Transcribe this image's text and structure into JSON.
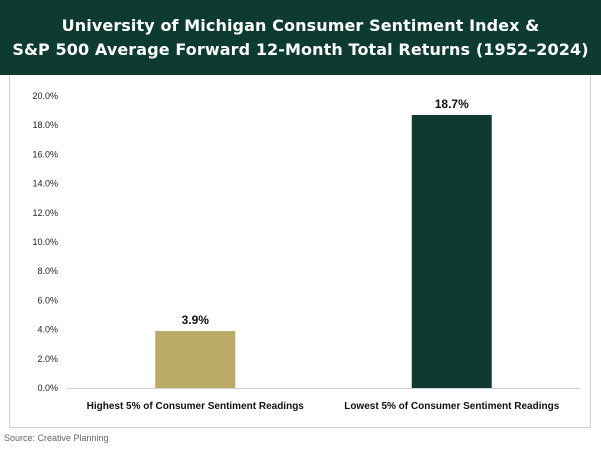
{
  "header": {
    "title_line1": "University of Michigan Consumer Sentiment Index &",
    "title_line2": "S&P 500 Average Forward 12-Month Total Returns (1952–2024)"
  },
  "source": "Source: Creative Planning",
  "colors": {
    "banner": "#0d3b31",
    "bar_high": "#b9ab65",
    "bar_low": "#0d3b31"
  },
  "chart_data": {
    "type": "bar",
    "title": "University of Michigan Consumer Sentiment Index & S&P 500 Average Forward 12-Month Total Returns (1952–2024)",
    "categories": [
      "Highest 5% of Consumer Sentiment Readings",
      "Lowest 5% of Consumer Sentiment Readings"
    ],
    "values": [
      3.9,
      18.7
    ],
    "data_labels": [
      "3.9%",
      "18.7%"
    ],
    "bar_colors": [
      "#b9ab65",
      "#0d3b31"
    ],
    "ylim": [
      0,
      20
    ],
    "yticks": [
      0,
      2,
      4,
      6,
      8,
      10,
      12,
      14,
      16,
      18,
      20
    ],
    "ytick_labels": [
      "0.0%",
      "2.0%",
      "4.0%",
      "6.0%",
      "8.0%",
      "10.0%",
      "12.0%",
      "14.0%",
      "16.0%",
      "18.0%",
      "20.0%"
    ],
    "xlabel": "",
    "ylabel": "",
    "grid": false
  }
}
